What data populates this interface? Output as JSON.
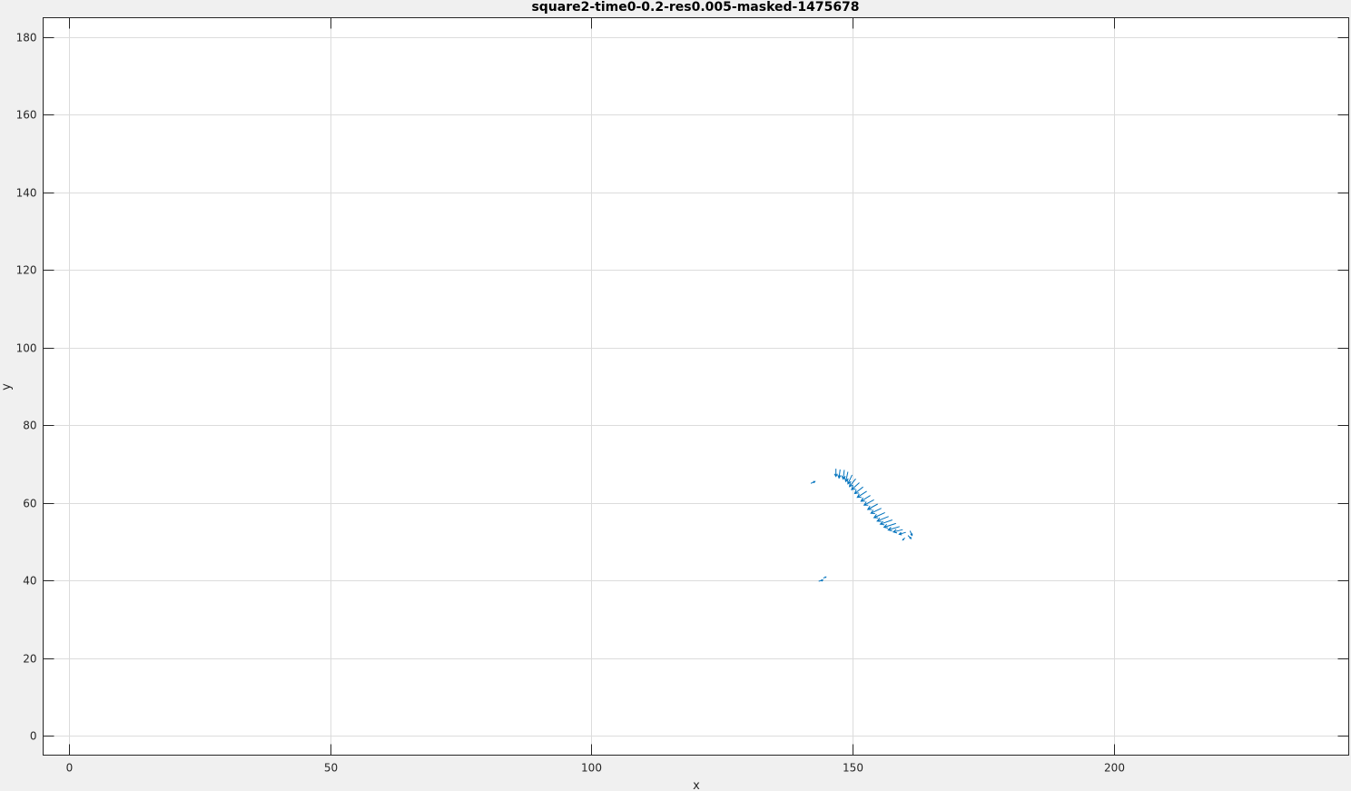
{
  "chart_data": {
    "type": "quiver",
    "title": "square2-time0-0.2-res0.005-masked-1475678",
    "xlabel": "x",
    "ylabel": "y",
    "xlim": [
      -5,
      245
    ],
    "ylim": [
      -5,
      185
    ],
    "xticks": [
      0,
      50,
      100,
      150,
      200
    ],
    "yticks": [
      0,
      20,
      40,
      60,
      80,
      100,
      120,
      140,
      160,
      180
    ],
    "grid": true,
    "color": "#0072bd",
    "arrows": [
      {
        "x": 142.0,
        "y": 65.0,
        "u": 0.8,
        "v": 0.5
      },
      {
        "x": 143.5,
        "y": 39.8,
        "u": 0.8,
        "v": 0.3
      },
      {
        "x": 144.4,
        "y": 40.6,
        "u": 0.5,
        "v": 0.3
      },
      {
        "x": 146.8,
        "y": 68.8,
        "u": 0.0,
        "v": -2.0
      },
      {
        "x": 147.6,
        "y": 68.6,
        "u": -0.2,
        "v": -2.2
      },
      {
        "x": 148.4,
        "y": 68.5,
        "u": -0.2,
        "v": -2.4
      },
      {
        "x": 149.1,
        "y": 68.0,
        "u": -0.4,
        "v": -2.5
      },
      {
        "x": 149.9,
        "y": 67.2,
        "u": -0.8,
        "v": -2.3
      },
      {
        "x": 150.6,
        "y": 66.2,
        "u": -1.2,
        "v": -2.0
      },
      {
        "x": 151.3,
        "y": 65.2,
        "u": -1.5,
        "v": -1.8
      },
      {
        "x": 152.0,
        "y": 64.1,
        "u": -1.6,
        "v": -1.7
      },
      {
        "x": 152.7,
        "y": 63.0,
        "u": -1.8,
        "v": -1.6
      },
      {
        "x": 153.4,
        "y": 61.9,
        "u": -1.8,
        "v": -1.5
      },
      {
        "x": 154.1,
        "y": 60.8,
        "u": -1.9,
        "v": -1.4
      },
      {
        "x": 154.8,
        "y": 59.7,
        "u": -1.9,
        "v": -1.4
      },
      {
        "x": 155.5,
        "y": 58.6,
        "u": -2.0,
        "v": -1.3
      },
      {
        "x": 156.2,
        "y": 57.5,
        "u": -2.1,
        "v": -1.3
      },
      {
        "x": 156.9,
        "y": 56.5,
        "u": -2.2,
        "v": -1.2
      },
      {
        "x": 157.6,
        "y": 55.6,
        "u": -2.3,
        "v": -1.1
      },
      {
        "x": 158.3,
        "y": 54.7,
        "u": -2.3,
        "v": -1.0
      },
      {
        "x": 159.0,
        "y": 53.9,
        "u": -2.2,
        "v": -0.9
      },
      {
        "x": 159.6,
        "y": 53.1,
        "u": -1.8,
        "v": -0.6
      },
      {
        "x": 160.2,
        "y": 52.4,
        "u": -1.3,
        "v": -0.5
      },
      {
        "x": 160.6,
        "y": 51.6,
        "u": 0.6,
        "v": -0.8
      },
      {
        "x": 160.0,
        "y": 51.0,
        "u": -0.4,
        "v": -0.6
      },
      {
        "x": 161.0,
        "y": 52.8,
        "u": 0.4,
        "v": -1.2
      }
    ]
  }
}
